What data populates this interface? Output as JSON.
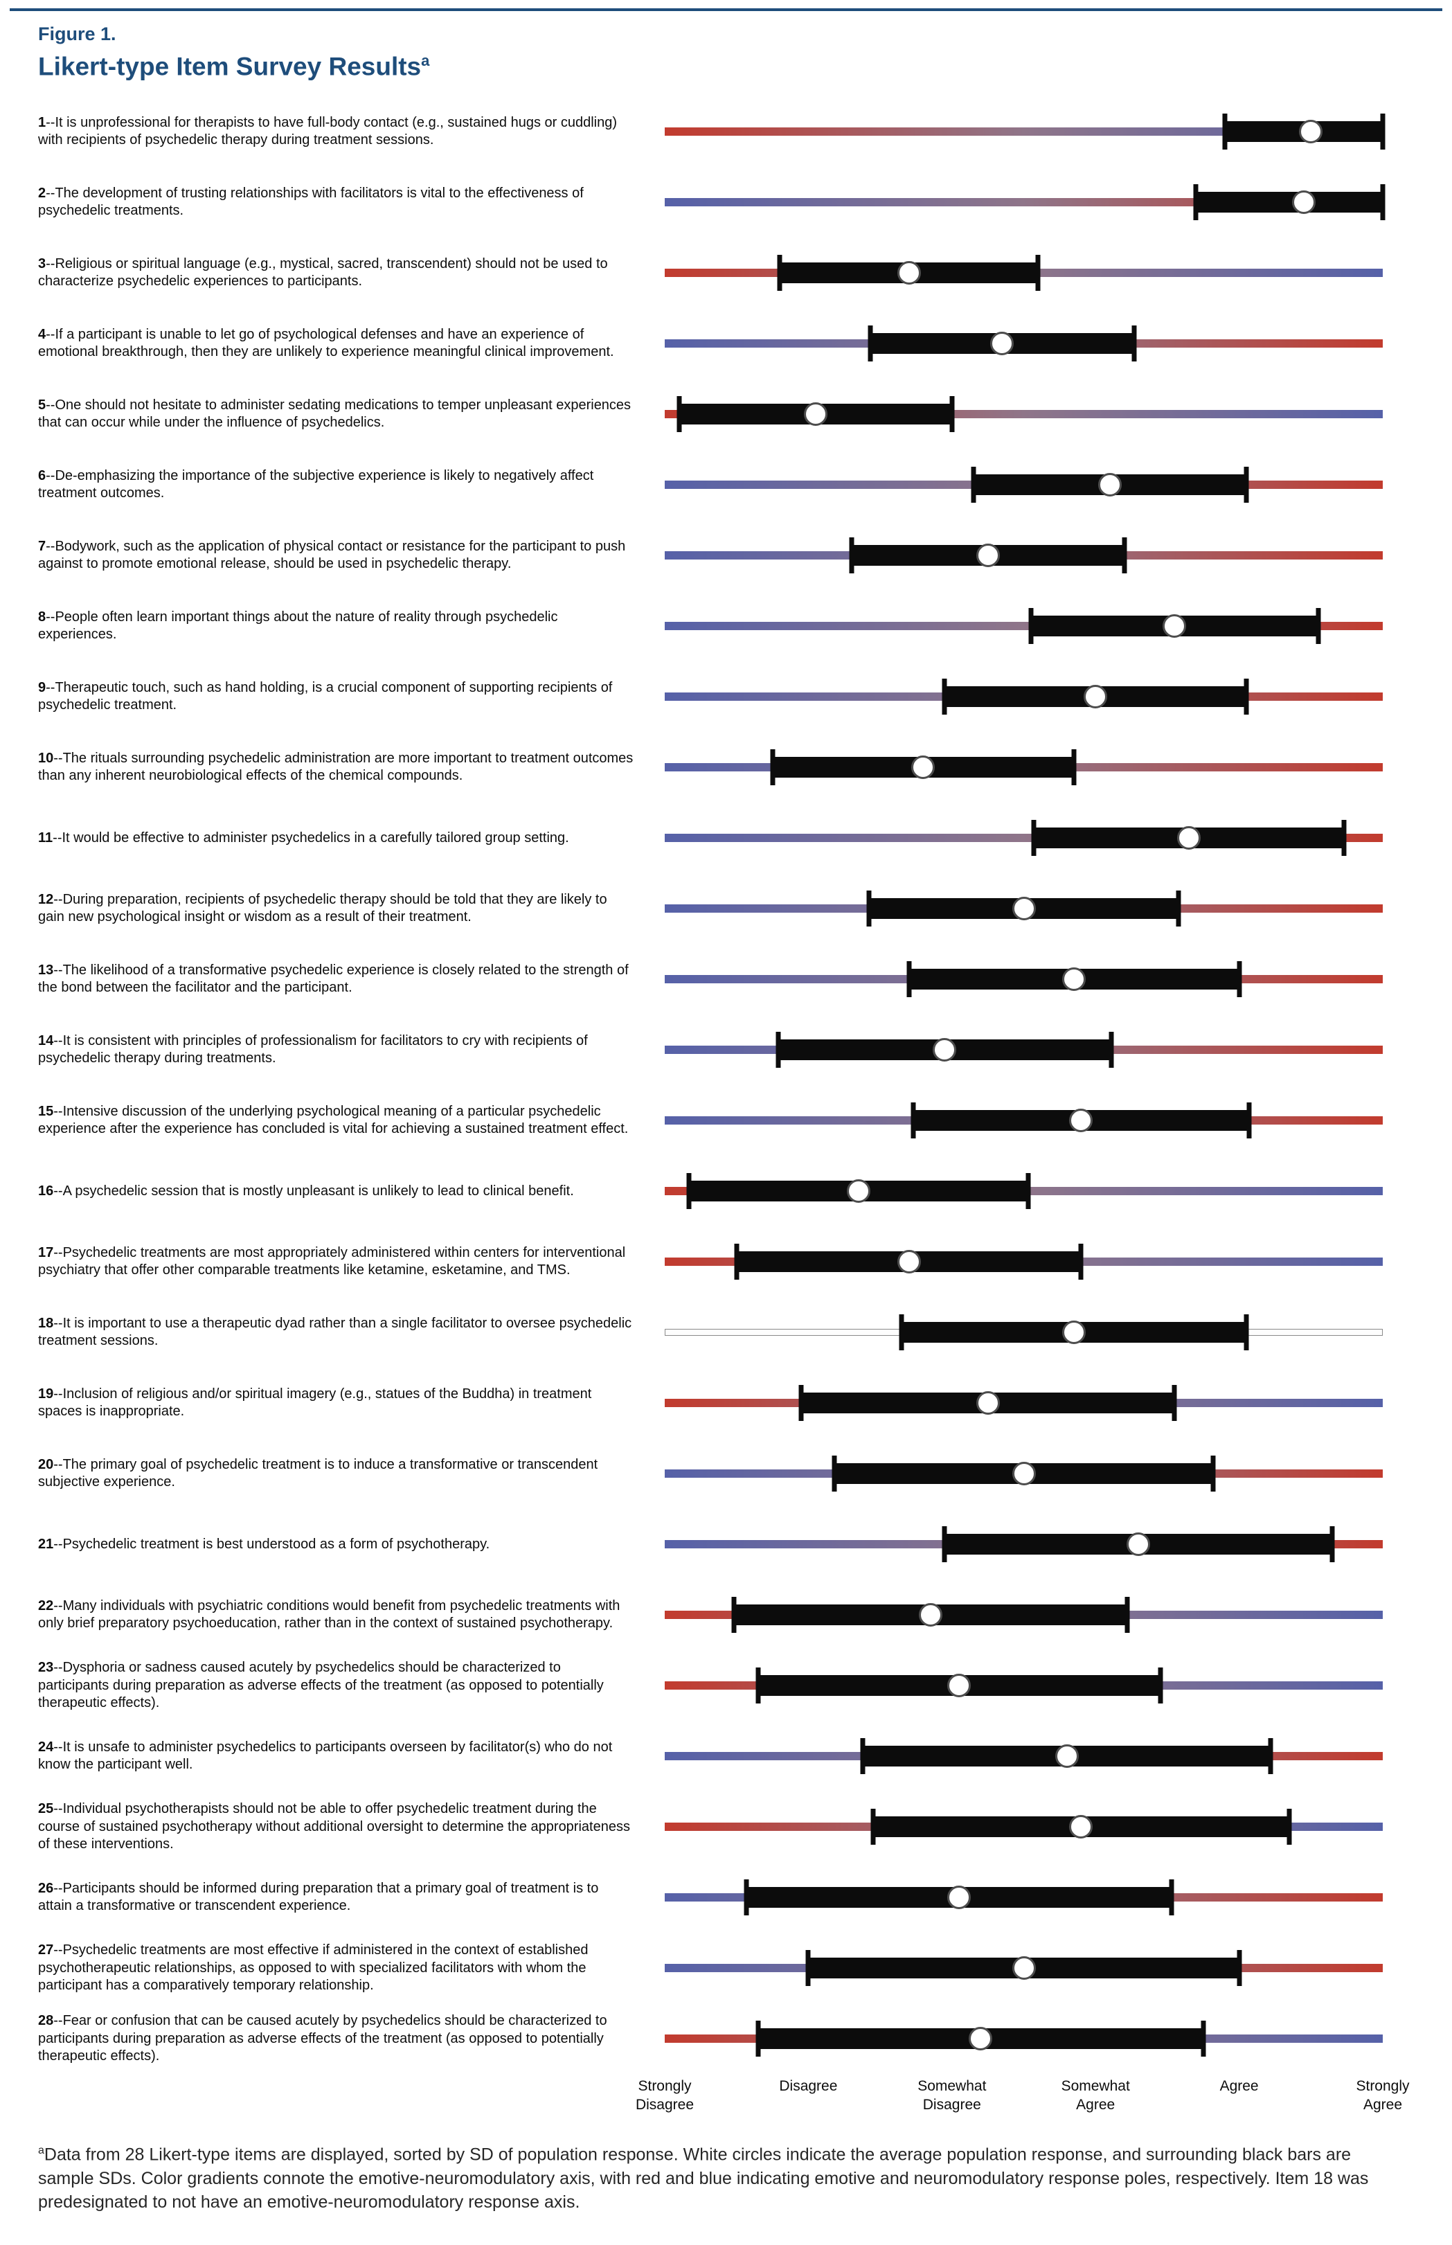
{
  "figure": {
    "kicker": "Figure 1.",
    "title": "Likert-type Item Survey Results",
    "title_superscript": "a",
    "accent_color": "#1e4d7b"
  },
  "chart_data": {
    "type": "likert_mean_sd",
    "title": "Likert-type Item Survey Results",
    "axis": {
      "min": 1,
      "max": 6,
      "tick_labels": [
        "Strongly\nDisagree",
        "Disagree",
        "Somewhat\nDisagree",
        "Somewhat\nAgree",
        "Agree",
        "Strongly\nAgree"
      ]
    },
    "colors": {
      "emotive_pole": "#c23b2e",
      "neuromodulatory_pole": "#5661a8",
      "mid": "#8f7589",
      "bar": "#0c0c0c",
      "marker_fill": "#ffffff",
      "marker_border": "#4d4d4d"
    },
    "items": [
      {
        "num": "1",
        "text": "--It is unprofessional for therapists to have full-body contact (e.g., sustained hugs or cuddling) with recipients of psychedelic therapy during treatment sessions.",
        "mean": 5.5,
        "sd": 0.6,
        "emotive_pole_side": "left"
      },
      {
        "num": "2",
        "text": "--The development of trusting relationships with facilitators is vital to the effectiveness of psychedelic treatments.",
        "mean": 5.45,
        "sd": 0.75,
        "emotive_pole_side": "right"
      },
      {
        "num": "3",
        "text": "--Religious or spiritual language (e.g., mystical, sacred, transcendent) should not be used to characterize psychedelic experiences to participants.",
        "mean": 2.7,
        "sd": 0.9,
        "emotive_pole_side": "left"
      },
      {
        "num": "4",
        "text": "--If a participant is unable to let go of psychological defenses and have an experience of emotional breakthrough, then they are unlikely to experience meaningful clinical improvement.",
        "mean": 3.35,
        "sd": 0.92,
        "emotive_pole_side": "right"
      },
      {
        "num": "5",
        "text": "--One should not hesitate to administer sedating medications to temper unpleasant experiences that can occur while under the influence of psychedelics.",
        "mean": 2.05,
        "sd": 0.95,
        "emotive_pole_side": "left"
      },
      {
        "num": "6",
        "text": "--De-emphasizing the importance of the subjective experience is likely to negatively affect treatment outcomes.",
        "mean": 4.1,
        "sd": 0.95,
        "emotive_pole_side": "right"
      },
      {
        "num": "7",
        "text": "--Bodywork, such as the application of physical contact or resistance for the participant to push against to promote emotional release, should be used in psychedelic therapy.",
        "mean": 3.25,
        "sd": 0.95,
        "emotive_pole_side": "right"
      },
      {
        "num": "8",
        "text": "--People often learn important things about the nature of reality through psychedelic experiences.",
        "mean": 4.55,
        "sd": 1.0,
        "emotive_pole_side": "right"
      },
      {
        "num": "9",
        "text": "--Therapeutic touch, such as hand holding, is a crucial component of supporting recipients of psychedelic treatment.",
        "mean": 4.0,
        "sd": 1.05,
        "emotive_pole_side": "right"
      },
      {
        "num": "10",
        "text": "--The rituals surrounding psychedelic administration are more important to treatment outcomes than any inherent neurobiological effects of the chemical compounds.",
        "mean": 2.8,
        "sd": 1.05,
        "emotive_pole_side": "right"
      },
      {
        "num": "11",
        "text": "--It would be effective to administer psychedelics in a carefully tailored group setting.",
        "mean": 4.65,
        "sd": 1.08,
        "emotive_pole_side": "right"
      },
      {
        "num": "12",
        "text": "--During preparation, recipients of psychedelic therapy should be told that they are likely to gain new psychological insight or wisdom as a result of their treatment.",
        "mean": 3.5,
        "sd": 1.08,
        "emotive_pole_side": "right"
      },
      {
        "num": "13",
        "text": "--The likelihood of a transformative psychedelic experience is closely related to the strength of the bond between the facilitator and the participant.",
        "mean": 3.85,
        "sd": 1.15,
        "emotive_pole_side": "right"
      },
      {
        "num": "14",
        "text": "--It is consistent with principles of professionalism for facilitators to cry with recipients of psychedelic therapy during treatments.",
        "mean": 2.95,
        "sd": 1.16,
        "emotive_pole_side": "right"
      },
      {
        "num": "15",
        "text": "--Intensive discussion of the underlying psychological meaning of a particular psychedelic experience after the experience has concluded is vital for achieving a sustained treatment effect.",
        "mean": 3.9,
        "sd": 1.17,
        "emotive_pole_side": "right"
      },
      {
        "num": "16",
        "text": "--A psychedelic session that is mostly unpleasant is unlikely to lead to clinical benefit.",
        "mean": 2.35,
        "sd": 1.18,
        "emotive_pole_side": "left"
      },
      {
        "num": "17",
        "text": "--Psychedelic treatments are most appropriately administered within centers for interventional psychiatry that offer other comparable treatments like ketamine, esketamine, and TMS.",
        "mean": 2.7,
        "sd": 1.2,
        "emotive_pole_side": "left"
      },
      {
        "num": "18",
        "text": "--It is important to use a therapeutic dyad rather than a single facilitator to oversee psychedelic treatment sessions.",
        "mean": 3.85,
        "sd": 1.2,
        "emotive_pole_side": "none"
      },
      {
        "num": "19",
        "text": "--Inclusion of religious and/or spiritual imagery (e.g., statues of the Buddha) in treatment spaces is inappropriate.",
        "mean": 3.25,
        "sd": 1.3,
        "emotive_pole_side": "left"
      },
      {
        "num": "20",
        "text": "--The primary goal of psychedelic treatment is to induce a transformative or transcendent subjective experience.",
        "mean": 3.5,
        "sd": 1.32,
        "emotive_pole_side": "right"
      },
      {
        "num": "21",
        "text": "--Psychedelic treatment is best understood as a form of psychotherapy.",
        "mean": 4.3,
        "sd": 1.35,
        "emotive_pole_side": "right"
      },
      {
        "num": "22",
        "text": "--Many individuals with psychiatric conditions would benefit from psychedelic treatments with only brief preparatory psychoeducation, rather than in the context of sustained psychotherapy.",
        "mean": 2.85,
        "sd": 1.37,
        "emotive_pole_side": "left"
      },
      {
        "num": "23",
        "text": "--Dysphoria or sadness caused acutely by psychedelics should be characterized to participants during preparation as adverse effects of the treatment (as opposed to potentially therapeutic effects).",
        "mean": 3.05,
        "sd": 1.4,
        "emotive_pole_side": "left"
      },
      {
        "num": "24",
        "text": "--It is unsafe to administer psychedelics to participants overseen by facilitator(s) who do not know the participant well.",
        "mean": 3.8,
        "sd": 1.42,
        "emotive_pole_side": "right"
      },
      {
        "num": "25",
        "text": "--Individual psychotherapists should not be able to offer psychedelic treatment during the course of sustained psychotherapy without additional oversight to determine the appropriateness of these interventions.",
        "mean": 3.9,
        "sd": 1.45,
        "emotive_pole_side": "left"
      },
      {
        "num": "26",
        "text": "--Participants should be informed during preparation that a primary goal of treatment is to attain a transformative or transcendent experience.",
        "mean": 3.05,
        "sd": 1.48,
        "emotive_pole_side": "right"
      },
      {
        "num": "27",
        "text": "--Psychedelic treatments are most effective if administered in the context of established psychotherapeutic relationships, as opposed to with specialized facilitators with whom the participant has a comparatively temporary relationship.",
        "mean": 3.5,
        "sd": 1.5,
        "emotive_pole_side": "right"
      },
      {
        "num": "28",
        "text": "--Fear or confusion that can be caused acutely by psychedelics should be characterized to participants during preparation as adverse effects of the treatment (as opposed to potentially therapeutic effects).",
        "mean": 3.2,
        "sd": 1.55,
        "emotive_pole_side": "left"
      }
    ]
  },
  "footnote": {
    "superscript": "a",
    "text": "Data from 28 Likert-type items are displayed, sorted by SD of population response. White circles indicate the average population response, and surrounding black bars are sample SDs. Color gradients connote the emotive-neuromodulatory axis, with red and blue indicating emotive and neuromodulatory response poles, respectively. Item 18 was predesignated to not have an emotive-neuromodulatory response axis."
  }
}
